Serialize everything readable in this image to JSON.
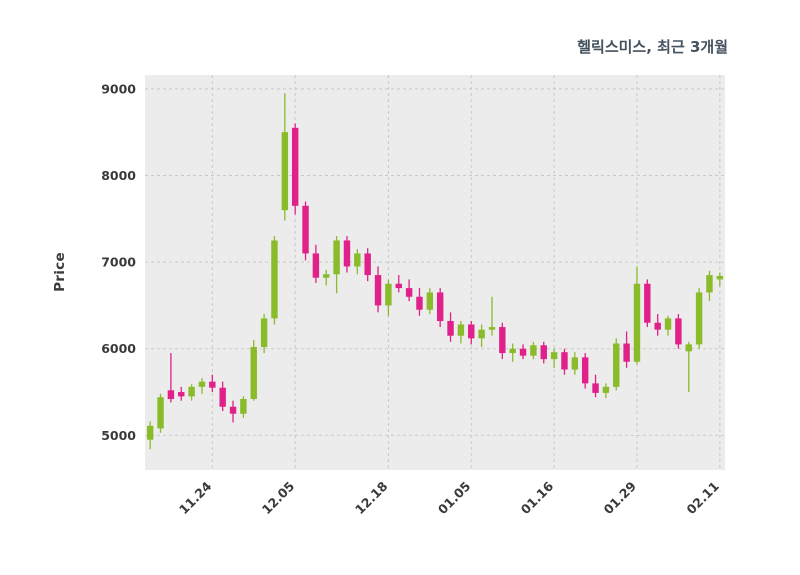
{
  "chart": {
    "title": "헬릭스미스, 최근 3개월",
    "ylabel": "Price"
  },
  "chart_data": {
    "type": "candlestick",
    "title": "헬릭스미스, 최근 3개월",
    "xlabel": "",
    "ylabel": "Price",
    "ylim": [
      4600,
      9160
    ],
    "yticks": [
      5000,
      6000,
      7000,
      8000,
      9000
    ],
    "tick_labels": [
      "11.24",
      "12.05",
      "12.18",
      "01.05",
      "01.16",
      "01.29",
      "02.11"
    ],
    "tick_indices": [
      6,
      14,
      23,
      31,
      39,
      47,
      55
    ],
    "grid": true,
    "legend": false,
    "up_color": "#8ABB2A",
    "down_color": "#E0218A",
    "plot_bg": "#ececec",
    "grid_color": "#c9c9c9",
    "text_color": "#3a3a3a",
    "title_color": "#45525f",
    "candles_format": "[open, high, low, close]",
    "candles": [
      [
        4950,
        5160,
        4840,
        5110
      ],
      [
        5080,
        5480,
        5030,
        5440
      ],
      [
        5520,
        5950,
        5380,
        5420
      ],
      [
        5500,
        5560,
        5400,
        5450
      ],
      [
        5450,
        5590,
        5400,
        5560
      ],
      [
        5560,
        5660,
        5480,
        5620
      ],
      [
        5620,
        5700,
        5500,
        5550
      ],
      [
        5550,
        5620,
        5280,
        5330
      ],
      [
        5330,
        5400,
        5150,
        5250
      ],
      [
        5250,
        5450,
        5200,
        5420
      ],
      [
        5420,
        6100,
        5400,
        6020
      ],
      [
        6020,
        6400,
        5950,
        6350
      ],
      [
        6350,
        7300,
        6280,
        7250
      ],
      [
        7600,
        8950,
        7480,
        8500
      ],
      [
        8550,
        8600,
        7550,
        7650
      ],
      [
        7650,
        7700,
        7020,
        7100
      ],
      [
        7100,
        7200,
        6760,
        6820
      ],
      [
        6820,
        6910,
        6730,
        6860
      ],
      [
        6860,
        7300,
        6640,
        7250
      ],
      [
        7250,
        7300,
        6880,
        6950
      ],
      [
        6950,
        7150,
        6860,
        7100
      ],
      [
        7100,
        7160,
        6780,
        6850
      ],
      [
        6850,
        6950,
        6420,
        6500
      ],
      [
        6500,
        6800,
        6380,
        6750
      ],
      [
        6750,
        6850,
        6650,
        6700
      ],
      [
        6700,
        6800,
        6550,
        6600
      ],
      [
        6600,
        6700,
        6380,
        6450
      ],
      [
        6450,
        6700,
        6400,
        6650
      ],
      [
        6650,
        6700,
        6250,
        6320
      ],
      [
        6320,
        6420,
        6080,
        6150
      ],
      [
        6150,
        6320,
        6060,
        6280
      ],
      [
        6280,
        6320,
        6050,
        6120
      ],
      [
        6120,
        6280,
        6020,
        6220
      ],
      [
        6220,
        6600,
        6150,
        6250
      ],
      [
        6250,
        6300,
        5880,
        5950
      ],
      [
        5950,
        6060,
        5850,
        6000
      ],
      [
        6000,
        6050,
        5880,
        5920
      ],
      [
        5920,
        6080,
        5880,
        6040
      ],
      [
        6040,
        6080,
        5830,
        5880
      ],
      [
        5880,
        6000,
        5780,
        5960
      ],
      [
        5960,
        6000,
        5700,
        5760
      ],
      [
        5760,
        5960,
        5700,
        5900
      ],
      [
        5900,
        5950,
        5540,
        5600
      ],
      [
        5600,
        5700,
        5440,
        5490
      ],
      [
        5490,
        5600,
        5430,
        5560
      ],
      [
        5560,
        6120,
        5520,
        6060
      ],
      [
        6060,
        6200,
        5780,
        5850
      ],
      [
        5850,
        6950,
        5820,
        6750
      ],
      [
        6750,
        6800,
        6250,
        6300
      ],
      [
        6300,
        6400,
        6150,
        6220
      ],
      [
        6220,
        6380,
        6150,
        6350
      ],
      [
        6350,
        6400,
        6000,
        6050
      ],
      [
        5970,
        6080,
        5500,
        6050
      ],
      [
        6050,
        6700,
        6000,
        6650
      ],
      [
        6650,
        6900,
        6550,
        6850
      ],
      [
        6800,
        6880,
        6720,
        6840
      ]
    ]
  }
}
